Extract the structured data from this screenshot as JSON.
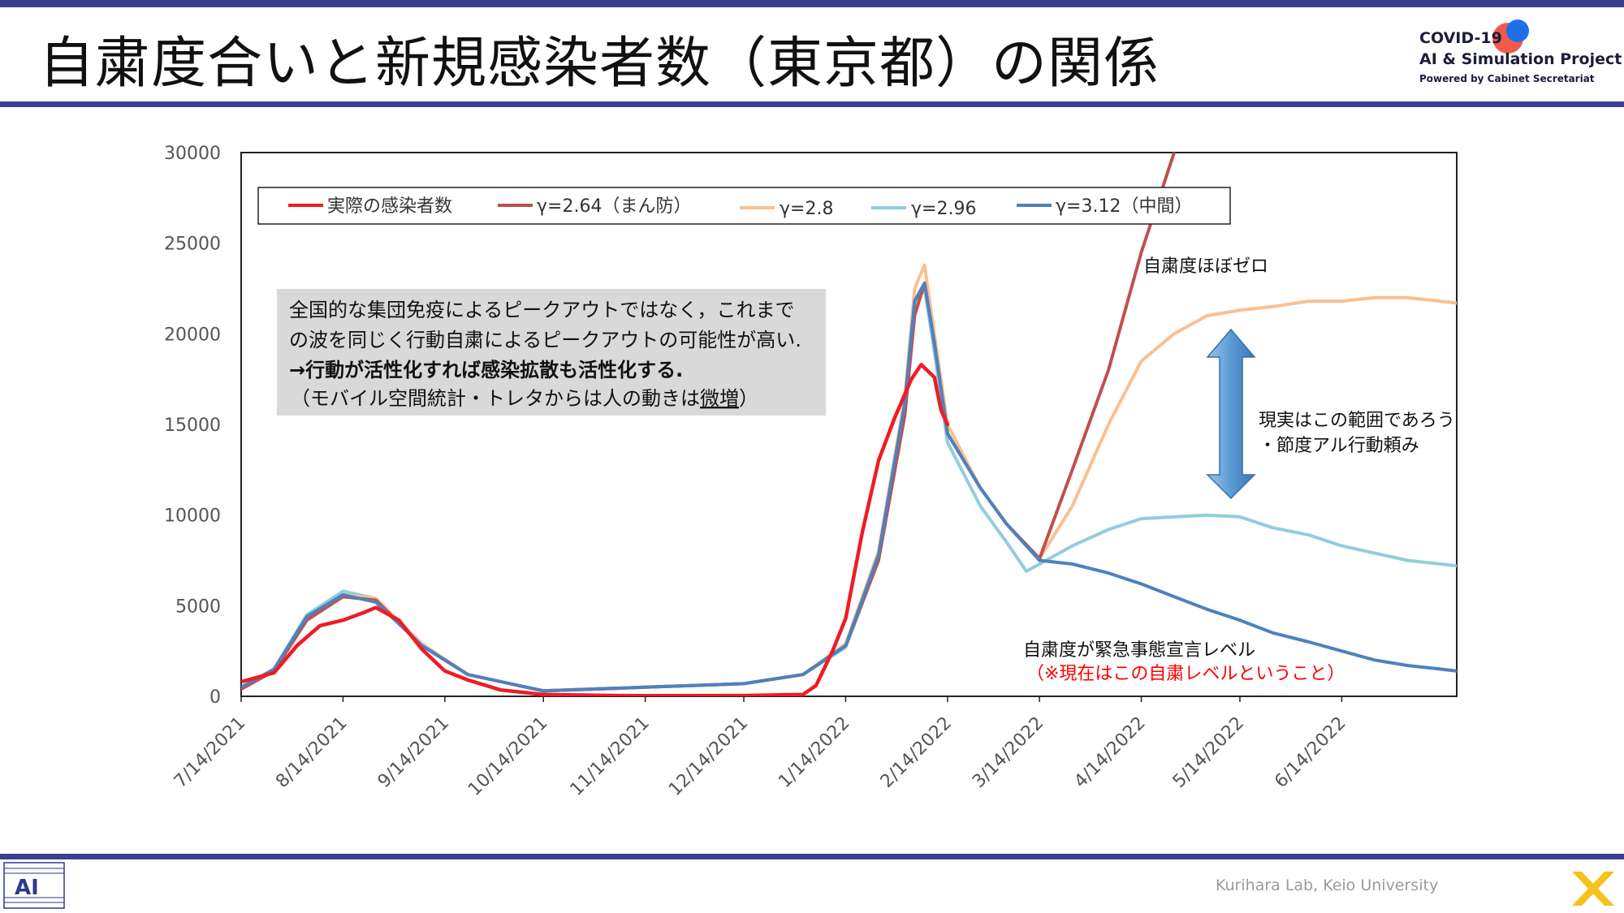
{
  "slide": {
    "title": "自粛度合いと新規感染者数（東京都）の関係",
    "brand_line1": "COVID-19",
    "brand_line2": "AI & Simulation Project",
    "brand_line3": "Powered by Cabinet Secretariat",
    "footer": "Kurihara Lab, Keio University"
  },
  "textbox": {
    "line1": "全国的な集団免疫によるピークアウトではなく，これまで",
    "line2": "の波を同じく行動自粛によるピークアウトの可能性が高い.",
    "line3": "→行動が活性化すれば感染拡散も活性化する.",
    "line4_pre": "（モバイル空間統計・トレタからは人の動きは",
    "line4_u": "微増",
    "line4_post": "）"
  },
  "annotations": {
    "zero": "自粛度ほぼゼロ",
    "range1": "現実はこの範囲であろう",
    "range2": "・節度アル行動頼み",
    "emergency1": "自粛度が緊急事態宣言レベル",
    "emergency2": "（※現在はこの自粛レベルということ）"
  },
  "colors": {
    "actual": "#ee1c25",
    "g264": "#c0504d",
    "g28": "#fac090",
    "g296": "#92cddc",
    "g312": "#4f81bd",
    "accent_red": "#ff0000",
    "textbox_bg": "#d9d9d9",
    "arrow": "#5b9bd5"
  },
  "chart_data": {
    "type": "line",
    "title": "",
    "xlabel": "",
    "ylabel": "",
    "x_ticks": [
      "7/14/2021",
      "8/14/2021",
      "9/14/2021",
      "10/14/2021",
      "11/14/2021",
      "12/14/2021",
      "1/14/2022",
      "2/14/2022",
      "3/14/2022",
      "4/14/2022",
      "5/14/2022",
      "6/14/2022"
    ],
    "y_ticks": [
      "0",
      "5000",
      "10000",
      "15000",
      "20000",
      "25000",
      "30000"
    ],
    "ylim": [
      0,
      30000
    ],
    "xlim": [
      "2021-07-14",
      "2022-07-19"
    ],
    "grid": false,
    "legend_position": "top",
    "series": [
      {
        "name": "実際の感染者数",
        "key": "actual",
        "points": [
          [
            "2021-07-14",
            800
          ],
          [
            "2021-07-24",
            1300
          ],
          [
            "2021-07-31",
            2800
          ],
          [
            "2021-08-07",
            3900
          ],
          [
            "2021-08-14",
            4200
          ],
          [
            "2021-08-20",
            4600
          ],
          [
            "2021-08-24",
            4900
          ],
          [
            "2021-08-31",
            4200
          ],
          [
            "2021-09-07",
            2600
          ],
          [
            "2021-09-14",
            1400
          ],
          [
            "2021-09-21",
            900
          ],
          [
            "2021-10-01",
            350
          ],
          [
            "2021-10-14",
            100
          ],
          [
            "2021-10-31",
            50
          ],
          [
            "2021-11-14",
            30
          ],
          [
            "2021-12-14",
            40
          ],
          [
            "2022-01-01",
            100
          ],
          [
            "2022-01-05",
            600
          ],
          [
            "2022-01-10",
            2500
          ],
          [
            "2022-01-14",
            4300
          ],
          [
            "2022-01-19",
            9000
          ],
          [
            "2022-01-24",
            13000
          ],
          [
            "2022-01-29",
            15400
          ],
          [
            "2022-02-03",
            17500
          ],
          [
            "2022-02-06",
            18300
          ],
          [
            "2022-02-10",
            17600
          ],
          [
            "2022-02-12",
            15800
          ],
          [
            "2022-02-14",
            15000
          ]
        ]
      },
      {
        "name": "γ=2.64（まん防）",
        "key": "g264",
        "points": [
          [
            "2021-07-14",
            400
          ],
          [
            "2021-07-24",
            1400
          ],
          [
            "2021-08-03",
            4200
          ],
          [
            "2021-08-14",
            5500
          ],
          [
            "2021-08-24",
            5300
          ],
          [
            "2021-09-07",
            2800
          ],
          [
            "2021-09-21",
            1200
          ],
          [
            "2021-10-14",
            300
          ],
          [
            "2021-11-14",
            500
          ],
          [
            "2021-12-14",
            700
          ],
          [
            "2022-01-01",
            1200
          ],
          [
            "2022-01-14",
            2800
          ],
          [
            "2022-01-24",
            7500
          ],
          [
            "2022-02-01",
            15500
          ],
          [
            "2022-02-04",
            21000
          ],
          [
            "2022-02-07",
            22800
          ],
          [
            "2022-02-10",
            19500
          ],
          [
            "2022-02-14",
            14500
          ],
          [
            "2022-02-24",
            11500
          ],
          [
            "2022-03-04",
            9500
          ],
          [
            "2022-03-14",
            7600
          ],
          [
            "2022-03-24",
            12500
          ],
          [
            "2022-04-04",
            18000
          ],
          [
            "2022-04-14",
            24500
          ],
          [
            "2022-04-24",
            30000
          ]
        ]
      },
      {
        "name": "γ=2.8",
        "key": "g28",
        "points": [
          [
            "2021-07-14",
            400
          ],
          [
            "2021-07-24",
            1400
          ],
          [
            "2021-08-03",
            4300
          ],
          [
            "2021-08-14",
            5600
          ],
          [
            "2021-08-24",
            5400
          ],
          [
            "2021-09-07",
            2900
          ],
          [
            "2021-09-21",
            1200
          ],
          [
            "2021-10-14",
            300
          ],
          [
            "2021-11-14",
            500
          ],
          [
            "2021-12-14",
            700
          ],
          [
            "2022-01-01",
            1200
          ],
          [
            "2022-01-14",
            2900
          ],
          [
            "2022-01-24",
            8000
          ],
          [
            "2022-02-01",
            16500
          ],
          [
            "2022-02-04",
            22500
          ],
          [
            "2022-02-07",
            23800
          ],
          [
            "2022-02-10",
            20000
          ],
          [
            "2022-02-14",
            15000
          ],
          [
            "2022-02-24",
            11500
          ],
          [
            "2022-03-04",
            9500
          ],
          [
            "2022-03-14",
            7600
          ],
          [
            "2022-03-24",
            10500
          ],
          [
            "2022-04-04",
            15000
          ],
          [
            "2022-04-14",
            18500
          ],
          [
            "2022-04-24",
            20000
          ],
          [
            "2022-05-04",
            21000
          ],
          [
            "2022-05-14",
            21300
          ],
          [
            "2022-05-24",
            21500
          ],
          [
            "2022-06-04",
            21800
          ],
          [
            "2022-06-14",
            21800
          ],
          [
            "2022-06-24",
            22000
          ],
          [
            "2022-07-04",
            22000
          ],
          [
            "2022-07-19",
            21700
          ]
        ]
      },
      {
        "name": "γ=2.96",
        "key": "g296",
        "points": [
          [
            "2021-07-14",
            400
          ],
          [
            "2021-07-24",
            1500
          ],
          [
            "2021-08-03",
            4500
          ],
          [
            "2021-08-14",
            5800
          ],
          [
            "2021-08-24",
            5400
          ],
          [
            "2021-09-07",
            2900
          ],
          [
            "2021-09-21",
            1200
          ],
          [
            "2021-10-14",
            300
          ],
          [
            "2021-11-14",
            500
          ],
          [
            "2021-12-14",
            700
          ],
          [
            "2022-01-01",
            1200
          ],
          [
            "2022-01-14",
            2700
          ],
          [
            "2022-01-24",
            7500
          ],
          [
            "2022-02-01",
            16000
          ],
          [
            "2022-02-04",
            21500
          ],
          [
            "2022-02-07",
            22500
          ],
          [
            "2022-02-10",
            19000
          ],
          [
            "2022-02-14",
            14000
          ],
          [
            "2022-02-24",
            10500
          ],
          [
            "2022-03-04",
            8500
          ],
          [
            "2022-03-10",
            6900
          ],
          [
            "2022-03-14",
            7300
          ],
          [
            "2022-03-24",
            8300
          ],
          [
            "2022-04-04",
            9200
          ],
          [
            "2022-04-14",
            9800
          ],
          [
            "2022-04-24",
            9900
          ],
          [
            "2022-05-04",
            10000
          ],
          [
            "2022-05-14",
            9900
          ],
          [
            "2022-05-24",
            9300
          ],
          [
            "2022-06-04",
            8900
          ],
          [
            "2022-06-14",
            8300
          ],
          [
            "2022-06-24",
            7900
          ],
          [
            "2022-07-04",
            7500
          ],
          [
            "2022-07-19",
            7200
          ]
        ]
      },
      {
        "name": "γ=3.12（中間）",
        "key": "g312",
        "points": [
          [
            "2021-07-14",
            500
          ],
          [
            "2021-07-24",
            1500
          ],
          [
            "2021-08-03",
            4400
          ],
          [
            "2021-08-14",
            5600
          ],
          [
            "2021-08-24",
            5200
          ],
          [
            "2021-09-07",
            2800
          ],
          [
            "2021-09-21",
            1200
          ],
          [
            "2021-10-14",
            300
          ],
          [
            "2021-11-14",
            500
          ],
          [
            "2021-12-14",
            700
          ],
          [
            "2022-01-01",
            1200
          ],
          [
            "2022-01-14",
            2800
          ],
          [
            "2022-01-24",
            7800
          ],
          [
            "2022-02-01",
            16200
          ],
          [
            "2022-02-04",
            21800
          ],
          [
            "2022-02-07",
            22800
          ],
          [
            "2022-02-10",
            19500
          ],
          [
            "2022-02-14",
            14500
          ],
          [
            "2022-02-24",
            11500
          ],
          [
            "2022-03-04",
            9500
          ],
          [
            "2022-03-14",
            7500
          ],
          [
            "2022-03-24",
            7300
          ],
          [
            "2022-04-04",
            6800
          ],
          [
            "2022-04-14",
            6200
          ],
          [
            "2022-04-24",
            5500
          ],
          [
            "2022-05-04",
            4800
          ],
          [
            "2022-05-14",
            4200
          ],
          [
            "2022-05-24",
            3500
          ],
          [
            "2022-06-04",
            3000
          ],
          [
            "2022-06-14",
            2500
          ],
          [
            "2022-06-24",
            2000
          ],
          [
            "2022-07-04",
            1700
          ],
          [
            "2022-07-19",
            1400
          ]
        ]
      }
    ]
  }
}
